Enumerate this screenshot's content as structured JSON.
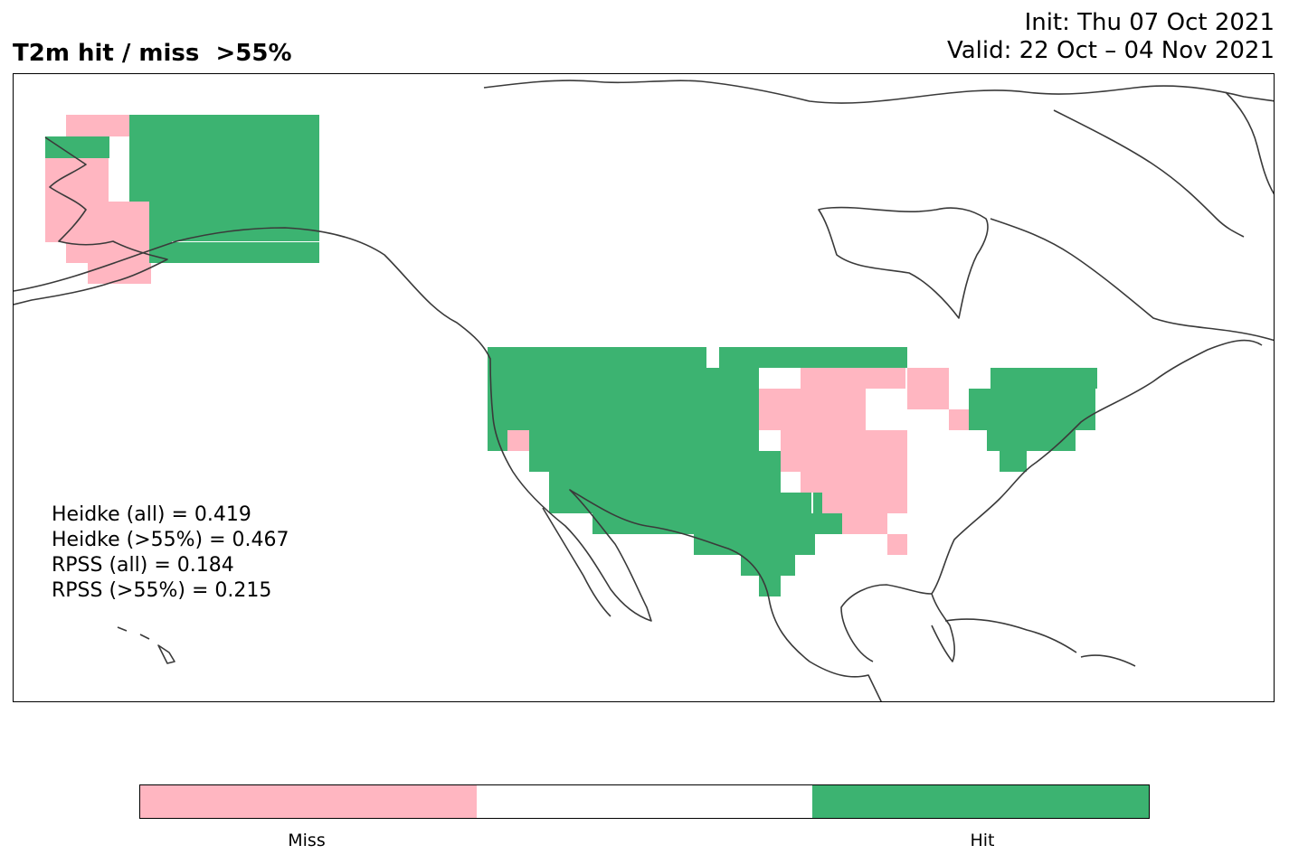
{
  "header": {
    "title": "T2m hit / miss  >55%",
    "init": "Init: Thu 07 Oct 2021",
    "valid": "Valid: 22 Oct – 04 Nov 2021"
  },
  "scores": [
    "Heidke (all) = 0.419",
    "Heidke (>55%) = 0.467",
    "RPSS (all) = 0.184",
    "RPSS (>55%) = 0.215"
  ],
  "legend": {
    "miss_label": "Miss",
    "hit_label": "Hit"
  },
  "colors": {
    "miss": "#FFB6C1",
    "neutral": "#FFFFFF",
    "hit": "#3CB371",
    "coastline": "#3a3a3a"
  },
  "map_data": {
    "type": "categorical-grid",
    "categories": [
      "Miss",
      "Hit"
    ],
    "region": "North America"
  }
}
